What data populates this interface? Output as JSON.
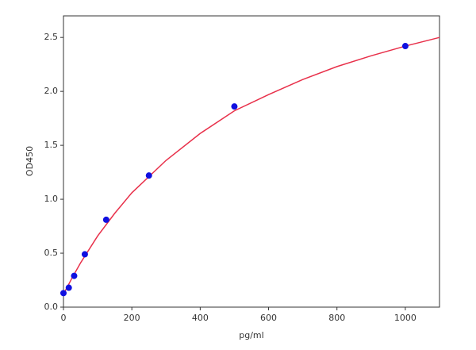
{
  "chart_data": {
    "type": "scatter",
    "xlabel": "pg/ml",
    "ylabel": "OD450",
    "xlim": [
      0,
      1100
    ],
    "xticks": [
      0,
      200,
      400,
      600,
      800,
      1000
    ],
    "ylim": [
      0,
      2.7
    ],
    "yticks": [
      {
        "value": 0,
        "label": "0.0"
      },
      0.5,
      {
        "value": 1,
        "label": "1.0"
      },
      1.5,
      {
        "value": 2,
        "label": "2.0"
      },
      2.5
    ],
    "points": {
      "color": "#1010e0",
      "x": [
        0,
        15.6,
        31.25,
        62.5,
        125,
        250,
        500,
        1000
      ],
      "values": [
        0.13,
        0.18,
        0.29,
        0.49,
        0.81,
        1.22,
        1.86,
        2.42
      ]
    },
    "curve": {
      "color": "#e8304a",
      "x": [
        0,
        25,
        50,
        100,
        150,
        200,
        300,
        400,
        500,
        600,
        700,
        800,
        900,
        1000,
        1100
      ],
      "values": [
        0.12,
        0.27,
        0.41,
        0.66,
        0.87,
        1.06,
        1.36,
        1.61,
        1.82,
        1.97,
        2.11,
        2.23,
        2.33,
        2.42,
        2.5
      ]
    }
  }
}
